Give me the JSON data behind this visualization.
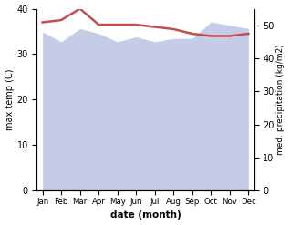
{
  "months": [
    "Jan",
    "Feb",
    "Mar",
    "Apr",
    "May",
    "Jun",
    "Jul",
    "Aug",
    "Sep",
    "Oct",
    "Nov",
    "Dec"
  ],
  "max_temp": [
    37.0,
    37.5,
    40.0,
    36.5,
    36.5,
    36.5,
    36.0,
    35.5,
    34.5,
    34.0,
    34.0,
    34.5
  ],
  "precipitation": [
    48.0,
    45.0,
    49.0,
    47.5,
    45.0,
    46.5,
    45.0,
    46.0,
    46.0,
    51.0,
    50.0,
    49.0
  ],
  "temp_color": "#c0504d",
  "precip_fill_color": "#c5cce8",
  "ylabel_left": "max temp (C)",
  "ylabel_right": "med. precipitation (kg/m2)",
  "xlabel": "date (month)",
  "ylim_left": [
    0,
    40
  ],
  "ylim_right": [
    0,
    55
  ],
  "yticks_left": [
    0,
    10,
    20,
    30,
    40
  ],
  "yticks_right": [
    0,
    10,
    20,
    30,
    40,
    50
  ],
  "background_color": "#ffffff"
}
